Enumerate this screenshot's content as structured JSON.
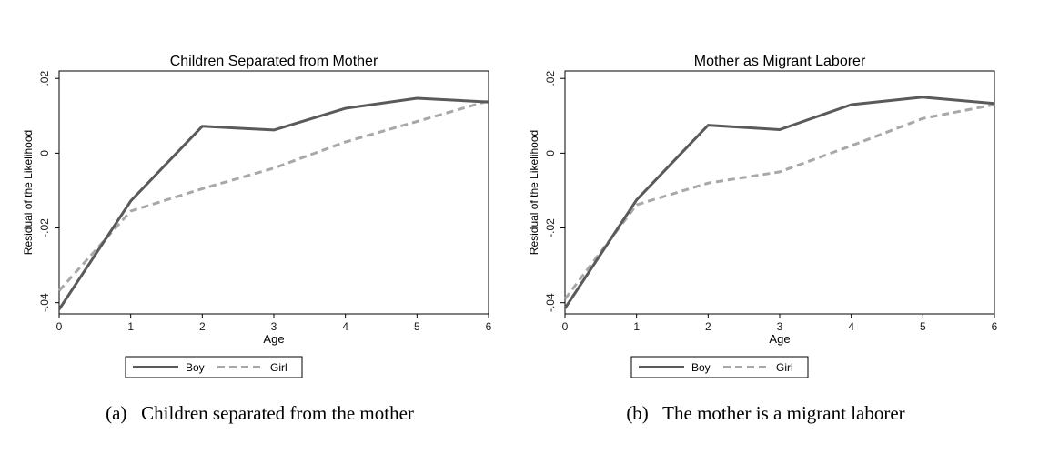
{
  "chart_data": [
    {
      "type": "line",
      "title": "Children Separated from Mother",
      "xlabel": "Age",
      "ylabel": "Residual of the Likelihood",
      "x": [
        0,
        1,
        2,
        3,
        4,
        5,
        6
      ],
      "xticks": [
        "0",
        "1",
        "2",
        "3",
        "4",
        "5",
        "6"
      ],
      "yticks": [
        {
          "value": -0.04,
          "label": "-.04"
        },
        {
          "value": -0.02,
          "label": "-.02"
        },
        {
          "value": 0,
          "label": "0"
        },
        {
          "value": 0.02,
          "label": ".02"
        }
      ],
      "xlim": [
        0,
        6
      ],
      "ylim": [
        -0.043,
        0.022
      ],
      "series": [
        {
          "name": "Boy",
          "style": "solid",
          "color": "#5a5a5a",
          "values": [
            -0.0418,
            -0.0128,
            0.0072,
            0.0062,
            0.012,
            0.0147,
            0.0137
          ]
        },
        {
          "name": "Girl",
          "style": "dashed",
          "color": "#a8a8a8",
          "values": [
            -0.0368,
            -0.0155,
            -0.0095,
            -0.004,
            0.003,
            0.0085,
            0.014
          ]
        }
      ],
      "legend": "bottom",
      "caption": "(a)   Children separated from the mother"
    },
    {
      "type": "line",
      "title": "Mother as Migrant Laborer",
      "xlabel": "Age",
      "ylabel": "Residual of the Likelihood",
      "x": [
        0,
        1,
        2,
        3,
        4,
        5,
        6
      ],
      "xticks": [
        "0",
        "1",
        "2",
        "3",
        "4",
        "5",
        "6"
      ],
      "yticks": [
        {
          "value": -0.04,
          "label": "-.04"
        },
        {
          "value": -0.02,
          "label": "-.02"
        },
        {
          "value": 0,
          "label": "0"
        },
        {
          "value": 0.02,
          "label": ".02"
        }
      ],
      "xlim": [
        0,
        6
      ],
      "ylim": [
        -0.043,
        0.022
      ],
      "series": [
        {
          "name": "Boy",
          "style": "solid",
          "color": "#5a5a5a",
          "values": [
            -0.0415,
            -0.0125,
            0.0075,
            0.0063,
            0.013,
            0.015,
            0.0133
          ]
        },
        {
          "name": "Girl",
          "style": "dashed",
          "color": "#a8a8a8",
          "values": [
            -0.039,
            -0.0138,
            -0.008,
            -0.005,
            0.002,
            0.0093,
            0.013
          ]
        }
      ],
      "legend": "bottom",
      "caption": "(b)   The mother is a migrant laborer"
    }
  ]
}
